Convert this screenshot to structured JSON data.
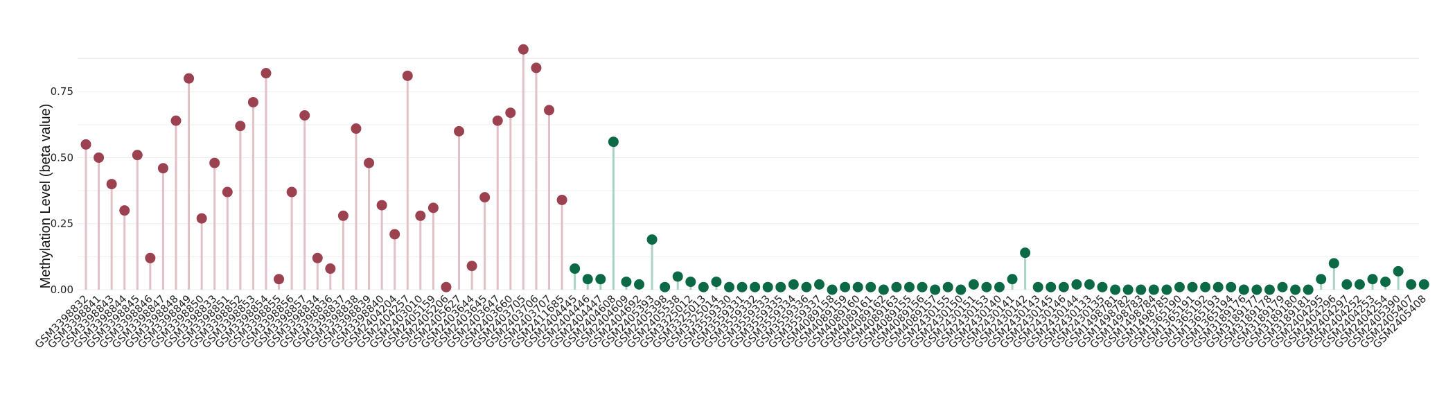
{
  "chart_data": {
    "type": "lollipop",
    "title": "",
    "xlabel": "",
    "ylabel": "Methylation Level (beta value)",
    "ylim": [
      0,
      0.95
    ],
    "yticks": [
      0,
      0.25,
      0.5,
      0.75
    ],
    "ytick_labels": [
      "0.00",
      "0.25",
      "0.50",
      "0.75"
    ],
    "grid": true,
    "legend": "none",
    "colors": {
      "group_a_point": "#9b4150",
      "group_a_stem": "#e2c0c7",
      "group_b_point": "#0b6a45",
      "group_b_stem": "#a9d3c2",
      "grid": "#eeeeee"
    },
    "groups": [
      {
        "name": "",
        "color_key": "group_a",
        "points": [
          [
            "GSM3398832",
            0.55
          ],
          [
            "GSM3398841",
            0.5
          ],
          [
            "GSM3398843",
            0.4
          ],
          [
            "GSM3398844",
            0.3
          ],
          [
            "GSM3398845",
            0.51
          ],
          [
            "GSM3398846",
            0.12
          ],
          [
            "GSM3398847",
            0.46
          ],
          [
            "GSM3398848",
            0.64
          ],
          [
            "GSM3398849",
            0.8
          ],
          [
            "GSM3398850",
            0.27
          ],
          [
            "GSM3398833",
            0.48
          ],
          [
            "GSM3398851",
            0.37
          ],
          [
            "GSM3398852",
            0.62
          ],
          [
            "GSM3398853",
            0.71
          ],
          [
            "GSM3398854",
            0.82
          ],
          [
            "GSM3398855",
            0.04
          ],
          [
            "GSM3398856",
            0.37
          ],
          [
            "GSM3398857",
            0.66
          ],
          [
            "GSM3398834",
            0.12
          ],
          [
            "GSM3398836",
            0.08
          ],
          [
            "GSM3398837",
            0.28
          ],
          [
            "GSM3398838",
            0.61
          ],
          [
            "GSM3398839",
            0.48
          ],
          [
            "GSM3398840",
            0.32
          ],
          [
            "GSM2404204",
            0.21
          ],
          [
            "GSM2404257",
            0.81
          ],
          [
            "GSM2403010",
            0.28
          ],
          [
            "GSM2405159",
            0.31
          ],
          [
            "GSM2405206",
            0.01
          ],
          [
            "GSM2405627",
            0.6
          ],
          [
            "GSM2403644",
            0.09
          ],
          [
            "GSM2403645",
            0.35
          ],
          [
            "GSM2403647",
            0.64
          ],
          [
            "GSM2403660",
            0.67
          ],
          [
            "GSM2403705",
            0.91
          ],
          [
            "GSM2403706",
            0.84
          ],
          [
            "GSM2403707",
            0.68
          ],
          [
            "GSM2411685",
            0.34
          ]
        ]
      },
      {
        "name": "",
        "color_key": "group_b",
        "points": [
          [
            "GSM2404445",
            0.08
          ],
          [
            "GSM2404446",
            0.04
          ],
          [
            "GSM2404447",
            0.04
          ],
          [
            "GSM2404608",
            0.56
          ],
          [
            "GSM2404609",
            0.03
          ],
          [
            "GSM2404692",
            0.02
          ],
          [
            "GSM2405393",
            0.19
          ],
          [
            "GSM2405398",
            0.01
          ],
          [
            "GSM2405538",
            0.05
          ],
          [
            "GSM3325012",
            0.03
          ],
          [
            "GSM3325013",
            0.01
          ],
          [
            "GSM3325014",
            0.03
          ],
          [
            "GSM3559330",
            0.01
          ],
          [
            "GSM3559331",
            0.01
          ],
          [
            "GSM3559332",
            0.01
          ],
          [
            "GSM3559333",
            0.01
          ],
          [
            "GSM3559335",
            0.01
          ],
          [
            "GSM3559334",
            0.02
          ],
          [
            "GSM3559336",
            0.01
          ],
          [
            "GSM3559337",
            0.02
          ],
          [
            "GSM4089158",
            0.0
          ],
          [
            "GSM4089159",
            0.01
          ],
          [
            "GSM4089160",
            0.01
          ],
          [
            "GSM4089161",
            0.01
          ],
          [
            "GSM4089162",
            0.0
          ],
          [
            "GSM4089163",
            0.01
          ],
          [
            "GSM4089155",
            0.01
          ],
          [
            "GSM4089156",
            0.01
          ],
          [
            "GSM4089157",
            0.0
          ],
          [
            "GSM2430155",
            0.01
          ],
          [
            "GSM2430150",
            0.0
          ],
          [
            "GSM2430151",
            0.02
          ],
          [
            "GSM2430153",
            0.01
          ],
          [
            "GSM2430140",
            0.01
          ],
          [
            "GSM2430141",
            0.04
          ],
          [
            "GSM2430142",
            0.14
          ],
          [
            "GSM2430143",
            0.01
          ],
          [
            "GSM2430145",
            0.01
          ],
          [
            "GSM2430146",
            0.01
          ],
          [
            "GSM2430144",
            0.02
          ],
          [
            "GSM2430133",
            0.02
          ],
          [
            "GSM2430135",
            0.01
          ],
          [
            "GSM1498781",
            0.0
          ],
          [
            "GSM1498782",
            0.0
          ],
          [
            "GSM1498783",
            0.0
          ],
          [
            "GSM1498784",
            0.0
          ],
          [
            "GSM1498785",
            0.0
          ],
          [
            "GSM1365190",
            0.01
          ],
          [
            "GSM1365191",
            0.01
          ],
          [
            "GSM1365192",
            0.01
          ],
          [
            "GSM1365193",
            0.01
          ],
          [
            "GSM1365194",
            0.01
          ],
          [
            "GSM3189176",
            0.0
          ],
          [
            "GSM3189177",
            0.0
          ],
          [
            "GSM3189178",
            0.0
          ],
          [
            "GSM3189179",
            0.01
          ],
          [
            "GSM3189180",
            0.0
          ],
          [
            "GSM3189181",
            0.0
          ],
          [
            "GSM2404295",
            0.04
          ],
          [
            "GSM2404296",
            0.1
          ],
          [
            "GSM2404297",
            0.02
          ],
          [
            "GSM2404252",
            0.02
          ],
          [
            "GSM2404253",
            0.04
          ],
          [
            "GSM2404254",
            0.03
          ],
          [
            "GSM2405390",
            0.07
          ],
          [
            "GSM2405407",
            0.02
          ],
          [
            "GSM2405408",
            0.02
          ]
        ]
      }
    ]
  }
}
